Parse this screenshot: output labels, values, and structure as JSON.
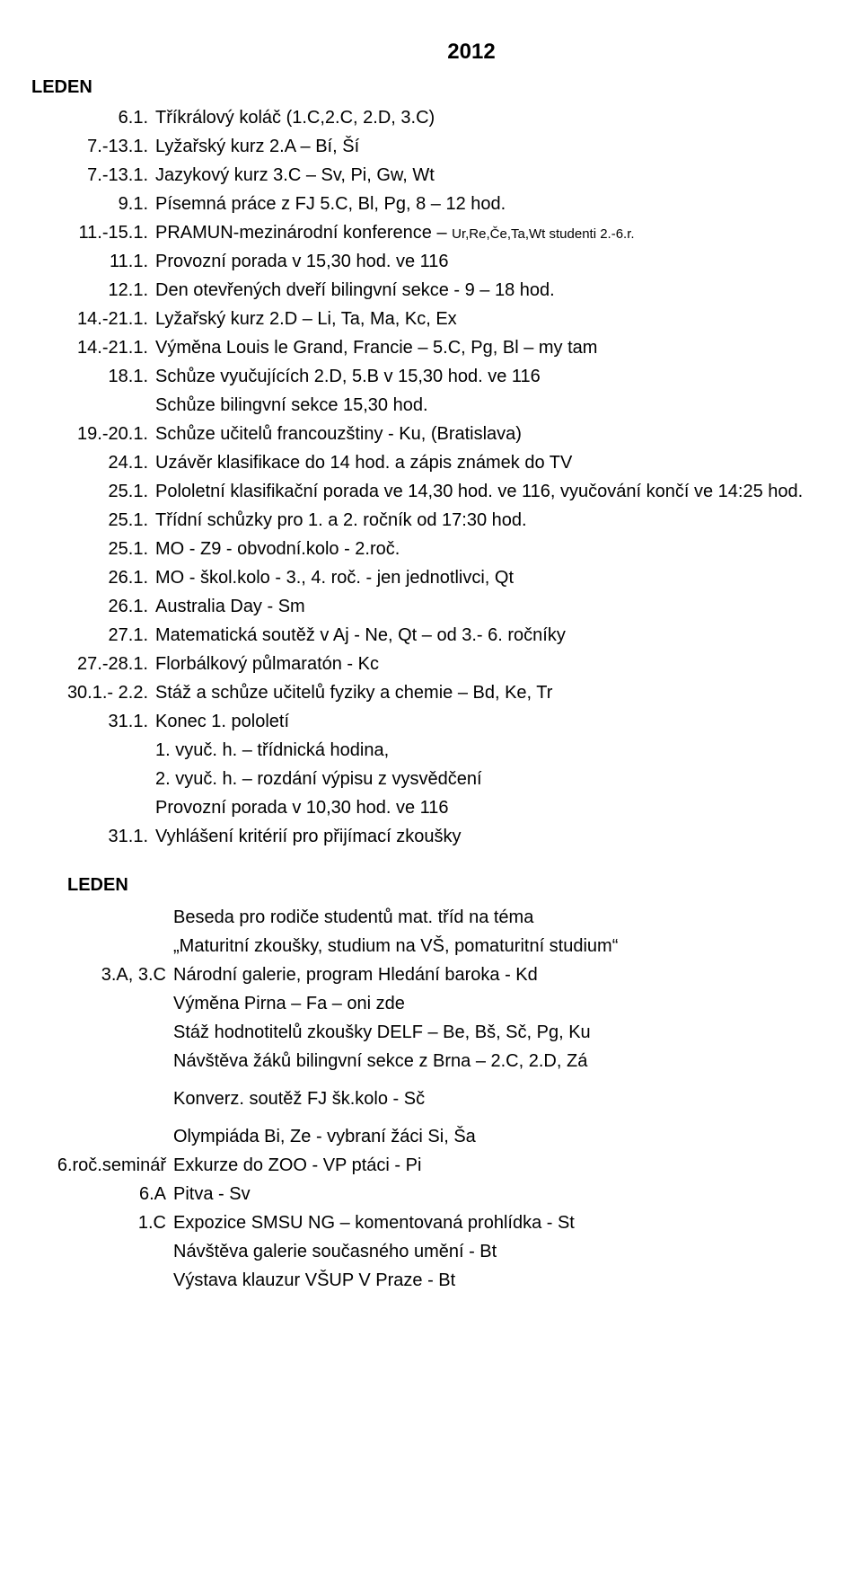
{
  "year": "2012",
  "month1": "LEDEN",
  "entries": [
    {
      "date": "6.1.",
      "text": "Tříkrálový koláč (1.C,2.C, 2.D, 3.C)"
    },
    {
      "date": "7.-13.1.",
      "text": "Lyžařský kurz 2.A – Bí, Ší"
    },
    {
      "date": "7.-13.1.",
      "text": "Jazykový kurz 3.C – Sv, Pi, Gw, Wt"
    },
    {
      "date": "9.1.",
      "text": "Písemná práce z FJ 5.C, Bl, Pg, 8 – 12 hod."
    },
    {
      "date": "11.-15.1.",
      "html": "PRAMUN-mezinárodní konference – <span class=\"small\">Ur,Re,Če,Ta,Wt studenti 2.-6.r.</span>"
    },
    {
      "date": "11.1.",
      "text": "Provozní porada v 15,30 hod. ve 116"
    },
    {
      "date": "12.1.",
      "text": "Den otevřených dveří bilingvní sekce - 9 – 18 hod."
    },
    {
      "date": "14.-21.1.",
      "text": "Lyžařský kurz 2.D – Li, Ta, Ma, Kc, Ex"
    },
    {
      "date": "14.-21.1.",
      "text": "Výměna Louis le Grand, Francie – 5.C, Pg, Bl – my tam"
    },
    {
      "date": "18.1.",
      "text": "Schůze vyučujících 2.D, 5.B v 15,30 hod. ve 116"
    },
    {
      "date": "",
      "text": "Schůze bilingvní sekce 15,30 hod."
    },
    {
      "date": "19.-20.1.",
      "text": "Schůze učitelů francouzštiny - Ku, (Bratislava)"
    },
    {
      "date": "24.1.",
      "text": "Uzávěr klasifikace do 14 hod. a zápis známek do TV"
    },
    {
      "date": "25.1.",
      "text": "Pololetní klasifikační porada ve 14,30 hod. ve 116, vyučování končí ve 14:25 hod."
    },
    {
      "date": "25.1.",
      "text": "Třídní schůzky pro 1. a 2. ročník od 17:30 hod."
    },
    {
      "date": "25.1.",
      "text": "MO - Z9 - obvodní.kolo - 2.roč."
    },
    {
      "date": "26.1.",
      "text": "MO - škol.kolo - 3., 4. roč. - jen jednotlivci, Qt"
    },
    {
      "date": "26.1.",
      "text": "Australia Day - Sm"
    },
    {
      "date": "27.1.",
      "text": "Matematická soutěž v Aj - Ne, Qt – od 3.- 6. ročníky"
    },
    {
      "date": "27.-28.1.",
      "text": "Florbálkový půlmaratón - Kc"
    },
    {
      "date": "30.1.- 2.2.",
      "text": "Stáž a schůze učitelů fyziky a chemie – Bd, Ke, Tr"
    },
    {
      "date": "31.1.",
      "text": "Konec 1. pololetí"
    },
    {
      "date": "",
      "text": "1. vyuč. h. – třídnická hodina,"
    },
    {
      "date": "",
      "text": "2. vyuč. h. – rozdání výpisu z vysvědčení"
    },
    {
      "date": "",
      "text": "Provozní porada  v 10,30 hod. ve 116"
    },
    {
      "date": "31.1.",
      "text": "Vyhlášení kritérií pro přijímací zkoušky"
    }
  ],
  "month2": "LEDEN",
  "entries2": [
    {
      "date": "",
      "text": "Beseda pro rodiče studentů mat. tříd na téma"
    },
    {
      "date": "",
      "text": "„Maturitní zkoušky, studium na VŠ, pomaturitní studium“"
    },
    {
      "date": "3.A, 3.C",
      "text": "Národní galerie, program Hledání baroka - Kd"
    },
    {
      "date": "",
      "text": "Výměna Pirna – Fa – oni zde"
    },
    {
      "date": "",
      "text": "Stáž hodnotitelů zkoušky DELF – Be, Bš, Sč, Pg, Ku"
    },
    {
      "date": "",
      "text": "Návštěva žáků bilingvní sekce z Brna – 2.C, 2.D, Zá"
    },
    {
      "date": "",
      "text": "Konverz. soutěž FJ šk.kolo - Sč",
      "gap": true
    },
    {
      "date": "",
      "text": "Olympiáda Bi, Ze - vybraní žáci Si, Ša",
      "gap": true
    },
    {
      "date": "6.roč.seminář",
      "text": "Exkurze do ZOO - VP ptáci - Pi"
    },
    {
      "date": "6.A",
      "text": "Pitva - Sv"
    },
    {
      "date": "1.C",
      "text": "Expozice SMSU NG – komentovaná prohlídka - St"
    },
    {
      "date": "",
      "text": "Návštěva galerie současného umění - Bt"
    },
    {
      "date": "",
      "text": "Výstava klauzur VŠUP V Praze - Bt"
    }
  ]
}
